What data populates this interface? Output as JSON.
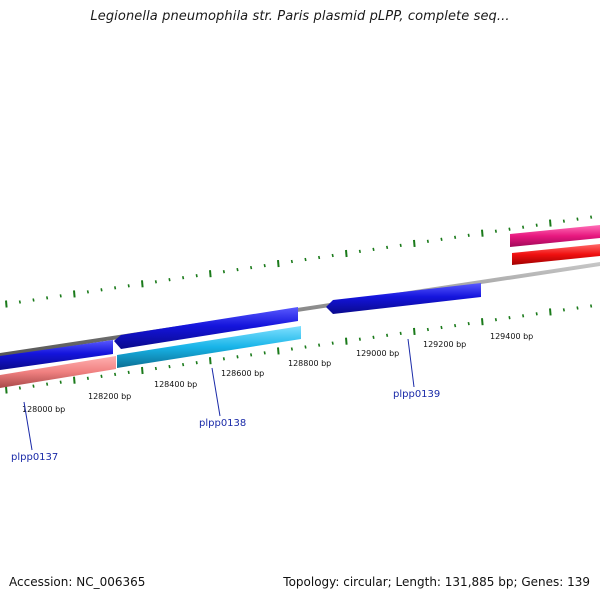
{
  "title": "Legionella pneumophila str. Paris plasmid pLPP, complete seq...",
  "footer": {
    "accession": "Accession: NC_006365",
    "summary": "Topology: circular; Length: 131,885 bp; Genes: 139"
  },
  "scale": {
    "unit": "bp",
    "labels": [
      "128000 bp",
      "128200 bp",
      "128400 bp",
      "128600 bp",
      "128800 bp",
      "129000 bp",
      "129200 bp",
      "129400 bp"
    ]
  },
  "genes": [
    {
      "name": "plpp0137",
      "labelled": true
    },
    {
      "name": "plpp0138",
      "labelled": true
    },
    {
      "name": "plpp0139",
      "labelled": true
    }
  ],
  "colors": {
    "backbone": "#8a8a8a",
    "forward_strand": "#1414dc",
    "reverse_strand_cyan": "#18b4e8",
    "reverse_strand_salmon": "#f08080",
    "pink_feature": "#e8187f",
    "red_feature": "#f01010",
    "tick": "#1a7a1a",
    "label": "#1a2aa8"
  }
}
